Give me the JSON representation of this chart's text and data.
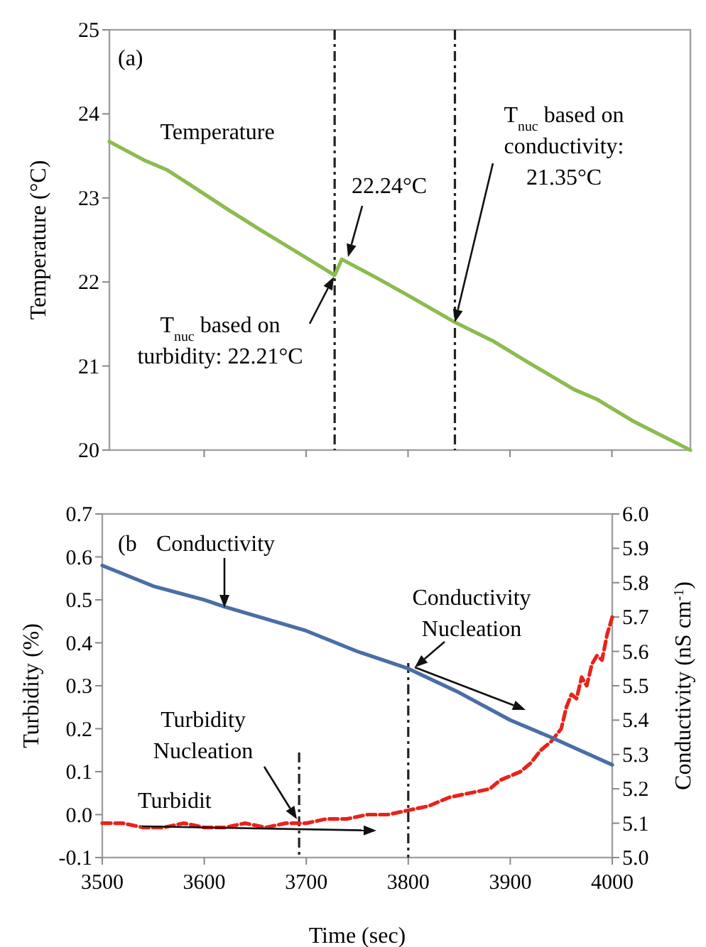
{
  "chart_data": [
    {
      "type": "line",
      "ylabel": "Temperature (°C)",
      "xlim": [
        3507,
        4077
      ],
      "xticks": [
        3600,
        3700,
        3800,
        3900,
        4000
      ],
      "ylim": [
        20,
        25
      ],
      "yticks": [
        20,
        21,
        22,
        23,
        24,
        25
      ],
      "tick_labels": "y",
      "grid": false,
      "series": [
        {
          "color": "#8cbb4f",
          "x": [
            3507,
            3541,
            3564,
            3587,
            3621,
            3655,
            3689,
            3728,
            3735,
            3769,
            3803,
            3846,
            3883,
            3917,
            3963,
            3986,
            4020,
            4077
          ],
          "values": [
            23.67,
            23.45,
            23.33,
            23.15,
            22.88,
            22.62,
            22.37,
            22.08,
            22.27,
            22.05,
            21.82,
            21.52,
            21.3,
            21.05,
            20.72,
            20.6,
            20.35,
            20.0
          ]
        }
      ],
      "ref_lines": [
        {
          "axis": "x",
          "value": 3728
        },
        {
          "axis": "x",
          "value": 3846
        }
      ],
      "annotations": [
        "(a)",
        "Temperature",
        "22.24°C",
        "T$_{nuc}$ based on turbidity: 22.21°C",
        {
          "text": "T$_{nuc}$ based on conductivity: 21.35°C",
          "x": 3846,
          "y": 21.52
        }
      ]
    },
    {
      "type": "line",
      "xlabel": "Time (sec)",
      "ylabel": "Turbidity (%)",
      "y2label": "Conductivity (nS cm$^{-1}$)",
      "xlim": [
        3500,
        4000
      ],
      "xticks": [
        3500,
        3600,
        3700,
        3800,
        3900,
        4000
      ],
      "ylim": [
        -0.1,
        0.7
      ],
      "yticks": [
        {
          "value": -0.1,
          "label": "-0.1"
        },
        {
          "value": 0,
          "label": "0.0"
        },
        0.1,
        0.2,
        0.3,
        0.4,
        0.5,
        0.6,
        0.7
      ],
      "y2lim": [
        5.0,
        6.0
      ],
      "y2ticks": [
        {
          "value": 5,
          "label": "5.0"
        },
        5.1,
        5.2,
        5.3,
        5.4,
        5.5,
        5.6,
        5.7,
        5.8,
        5.9,
        {
          "value": 6,
          "label": "6.0"
        }
      ],
      "grid": false,
      "series": [
        {
          "color": "#e8231b",
          "line_style": "dashed",
          "x": [
            3500,
            3520,
            3540,
            3560,
            3580,
            3600,
            3620,
            3640,
            3660,
            3680,
            3700,
            3720,
            3740,
            3760,
            3780,
            3800,
            3820,
            3840,
            3860,
            3880,
            3890,
            3900,
            3910,
            3920,
            3930,
            3940,
            3950,
            3955,
            3960,
            3965,
            3970,
            3975,
            3980,
            3985,
            3990,
            3995,
            4000
          ],
          "values": [
            -0.02,
            -0.02,
            -0.03,
            -0.03,
            -0.02,
            -0.03,
            -0.03,
            -0.02,
            -0.03,
            -0.02,
            -0.02,
            -0.01,
            -0.01,
            0.0,
            0.0,
            0.01,
            0.02,
            0.04,
            0.05,
            0.06,
            0.08,
            0.09,
            0.1,
            0.12,
            0.15,
            0.17,
            0.2,
            0.25,
            0.28,
            0.27,
            0.32,
            0.3,
            0.35,
            0.37,
            0.36,
            0.42,
            0.46
          ]
        },
        {
          "color": "#4a6ea6",
          "axis": "y2",
          "x": [
            3500,
            3550,
            3600,
            3620,
            3700,
            3750,
            3800,
            3850,
            3900,
            3940,
            4000
          ],
          "values": [
            5.85,
            5.79,
            5.75,
            5.73,
            5.66,
            5.6,
            5.55,
            5.48,
            5.4,
            5.35,
            5.27
          ]
        }
      ],
      "ref_lines": [
        {
          "axis": "x",
          "value": 3693
        },
        {
          "axis": "x",
          "value": 3800
        }
      ],
      "annotations": [
        "(b",
        "Conductivity",
        "Conductivity Nucleation",
        "Turbidity Nucleation",
        "Turbidit"
      ]
    }
  ]
}
